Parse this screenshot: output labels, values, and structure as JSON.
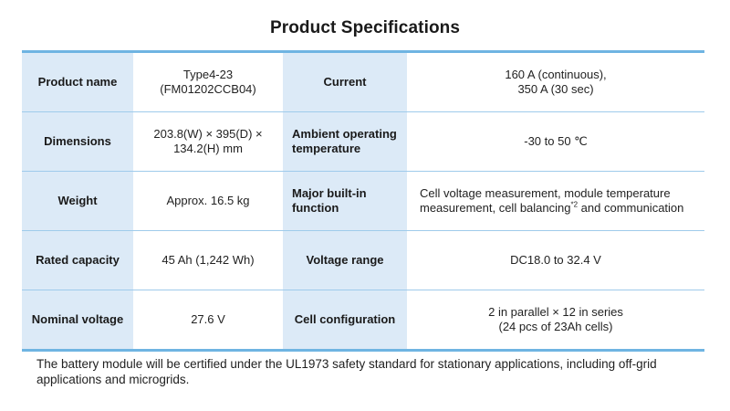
{
  "title": "Product Specifications",
  "rows": [
    {
      "left_label": "Product name",
      "left_value": [
        "Type4-23",
        "(FM01202CCB04)"
      ],
      "right_label": [
        "Current"
      ],
      "right_value": [
        "160 A (continuous),",
        "350 A (30 sec)"
      ]
    },
    {
      "left_label": "Dimensions",
      "left_value": [
        "203.8(W) × 395(D) ×",
        "134.2(H) mm"
      ],
      "right_label": [
        "Ambient operating",
        "temperature"
      ],
      "right_value": [
        "-30 to 50 ℃"
      ]
    },
    {
      "left_label": "Weight",
      "left_value": [
        "Approx. 16.5 kg"
      ],
      "right_label": [
        "Major built-in",
        "function"
      ],
      "right_value": {
        "line1": "Cell voltage measurement, module temperature",
        "line2_before": "measurement, cell balancing",
        "line2_sup": "*2",
        "line2_after": " and communication"
      }
    },
    {
      "left_label": "Rated capacity",
      "left_value": [
        "45 Ah (1,242 Wh)"
      ],
      "right_label": [
        "Voltage range"
      ],
      "right_value": [
        "DC18.0 to 32.4 V"
      ]
    },
    {
      "left_label": "Nominal voltage",
      "left_value": [
        "27.6 V"
      ],
      "right_label": [
        "Cell configuration"
      ],
      "right_value": [
        "2 in parallel × 12 in series",
        "(24 pcs of 23Ah cells)"
      ]
    }
  ],
  "note": [
    "The battery module will be certified under the UL1973 safety standard for stationary applications, including off-grid",
    "applications and microgrids."
  ],
  "colors": {
    "label_background": "#dceaf7",
    "border_accent": "#6fb4e2",
    "row_divider": "#9fcbeb"
  }
}
